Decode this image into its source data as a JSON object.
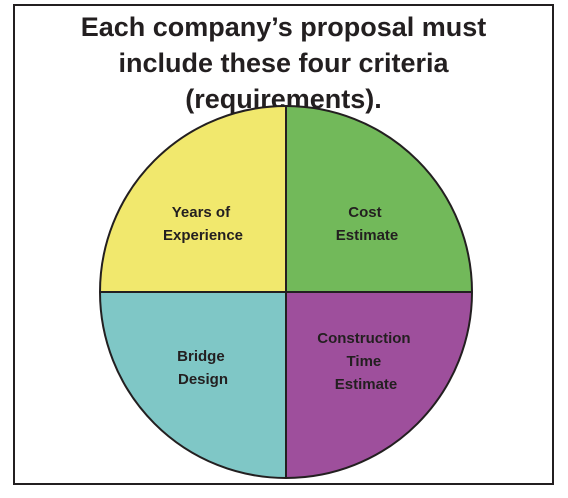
{
  "title": {
    "lines": [
      "Each company’s proposal must",
      "include these four criteria",
      "(requirements)."
    ]
  },
  "quadrants": {
    "top_left": {
      "lines": [
        "Years of",
        "Experience"
      ],
      "color": "#f1e86d"
    },
    "top_right": {
      "lines": [
        "Cost",
        "Estimate"
      ],
      "color": "#72b95a"
    },
    "bottom_left": {
      "lines": [
        "Bridge",
        "Design"
      ],
      "color": "#7fc7c6"
    },
    "bottom_right": {
      "lines": [
        "Construction",
        "Time",
        "Estimate"
      ],
      "color": "#9e4f9c"
    }
  },
  "colors": {
    "outline": "#231f20",
    "background": "#ffffff"
  }
}
